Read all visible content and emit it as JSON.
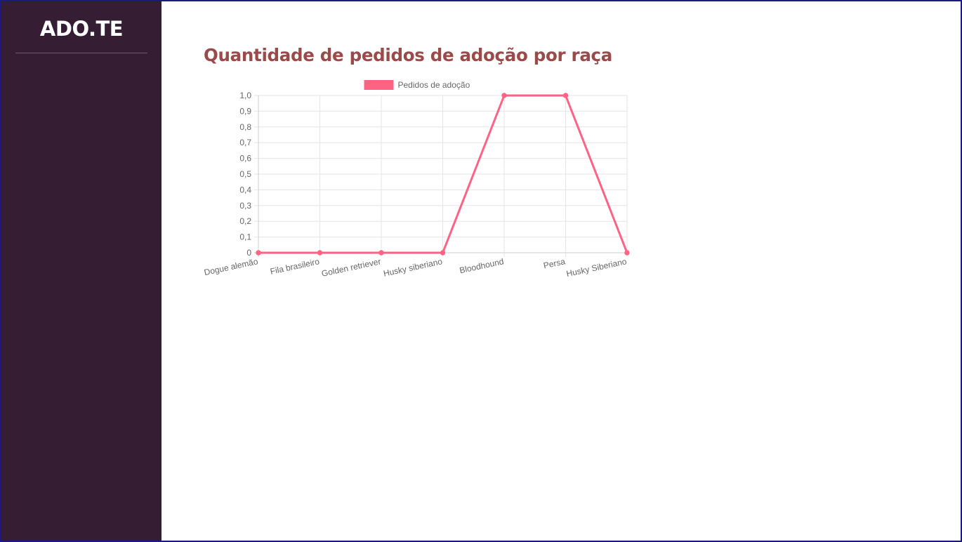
{
  "app": {
    "brand": "ADO.TE"
  },
  "page": {
    "title": "Quantidade de pedidos de adoção por raça"
  },
  "colors": {
    "sidebar_bg": "#351e34",
    "title": "#9b4a4a",
    "series": "#ff6384",
    "grid": "#e5e5e5",
    "tick_text": "#666666"
  },
  "chart_data": {
    "type": "line",
    "categories": [
      "Dogue alemão",
      "Fila brasileiro",
      "Golden retriever",
      "Husky siberiano",
      "Bloodhound",
      "Persa",
      "Husky Siberiano"
    ],
    "series": [
      {
        "name": "Pedidos de adoção",
        "values": [
          0,
          0,
          0,
          0,
          1,
          1,
          0
        ],
        "color": "#ff6384"
      }
    ],
    "y_ticks": [
      "0",
      "0,1",
      "0,2",
      "0,3",
      "0,4",
      "0,5",
      "0,6",
      "0,7",
      "0,8",
      "0,9",
      "1,0"
    ],
    "ylim": [
      0,
      1
    ],
    "grid": true,
    "legend": "top-center"
  }
}
